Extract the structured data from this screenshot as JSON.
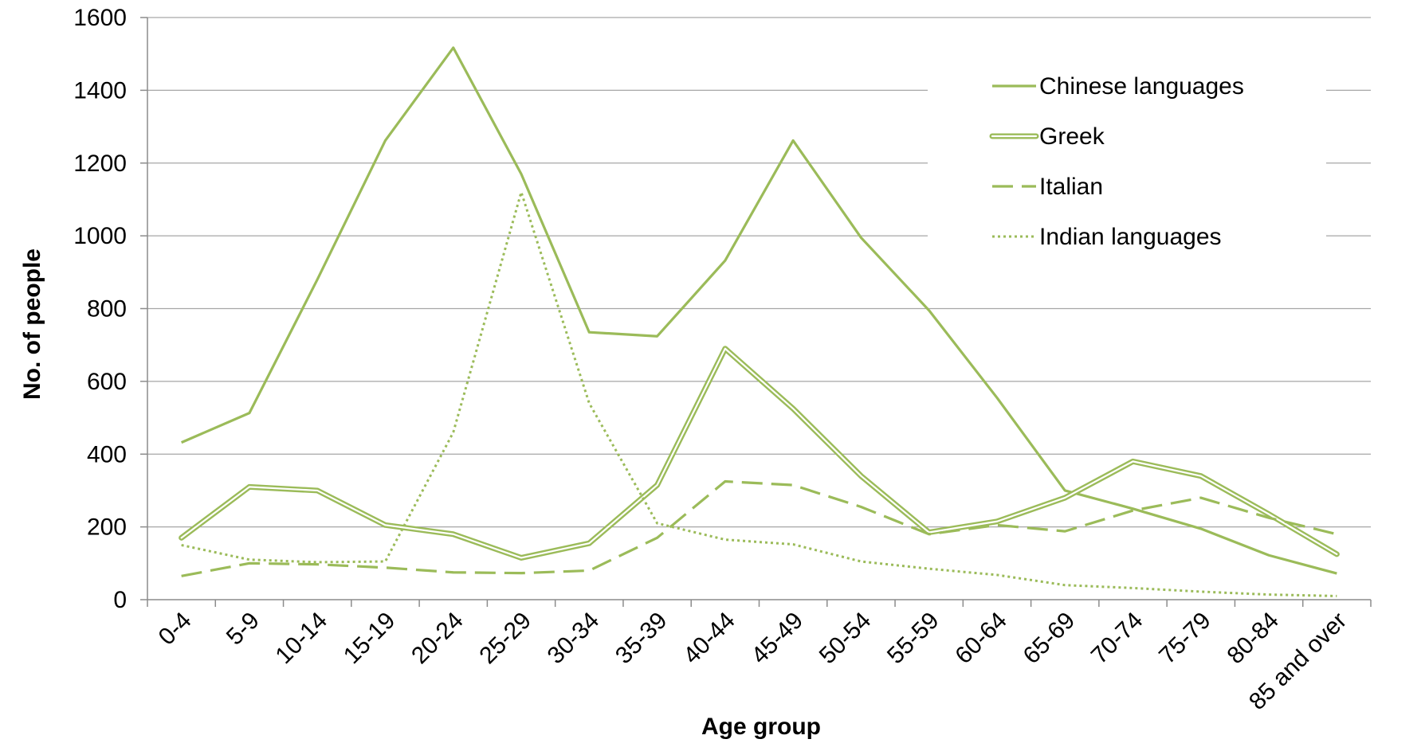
{
  "colors": {
    "series": "#9bbb59",
    "grid": "#a6a6a6",
    "axis": "#8c8c8c",
    "text": "#000000"
  },
  "chart_data": {
    "type": "line",
    "title": "",
    "xlabel": "Age group",
    "ylabel": "No. of people",
    "ylim": [
      0,
      1600
    ],
    "yticks": [
      0,
      200,
      400,
      600,
      800,
      1000,
      1200,
      1400,
      1600
    ],
    "grid": true,
    "legend_position": "top-right",
    "categories": [
      "0-4",
      "5-9",
      "10-14",
      "15-19",
      "20-24",
      "25-29",
      "30-34",
      "35-39",
      "40-44",
      "45-49",
      "50-54",
      "55-59",
      "60-64",
      "65-69",
      "70-74",
      "75-79",
      "80-84",
      "85 and over"
    ],
    "series": [
      {
        "name": "Chinese languages",
        "style": "solid",
        "values": [
          432,
          513,
          880,
          1262,
          1517,
          1170,
          735,
          724,
          932,
          1262,
          995,
          795,
          555,
          300,
          250,
          195,
          122,
          72
        ]
      },
      {
        "name": "Greek",
        "style": "double",
        "values": [
          170,
          310,
          300,
          205,
          180,
          115,
          155,
          315,
          690,
          525,
          340,
          185,
          215,
          280,
          380,
          340,
          235,
          125
        ]
      },
      {
        "name": "Italian",
        "style": "dashed",
        "values": [
          65,
          100,
          97,
          88,
          75,
          73,
          80,
          170,
          325,
          315,
          255,
          180,
          205,
          188,
          245,
          280,
          225,
          180
        ]
      },
      {
        "name": "Indian languages",
        "style": "dotted",
        "values": [
          150,
          110,
          103,
          105,
          460,
          1120,
          540,
          210,
          165,
          152,
          105,
          85,
          68,
          40,
          32,
          22,
          14,
          10
        ]
      }
    ]
  }
}
